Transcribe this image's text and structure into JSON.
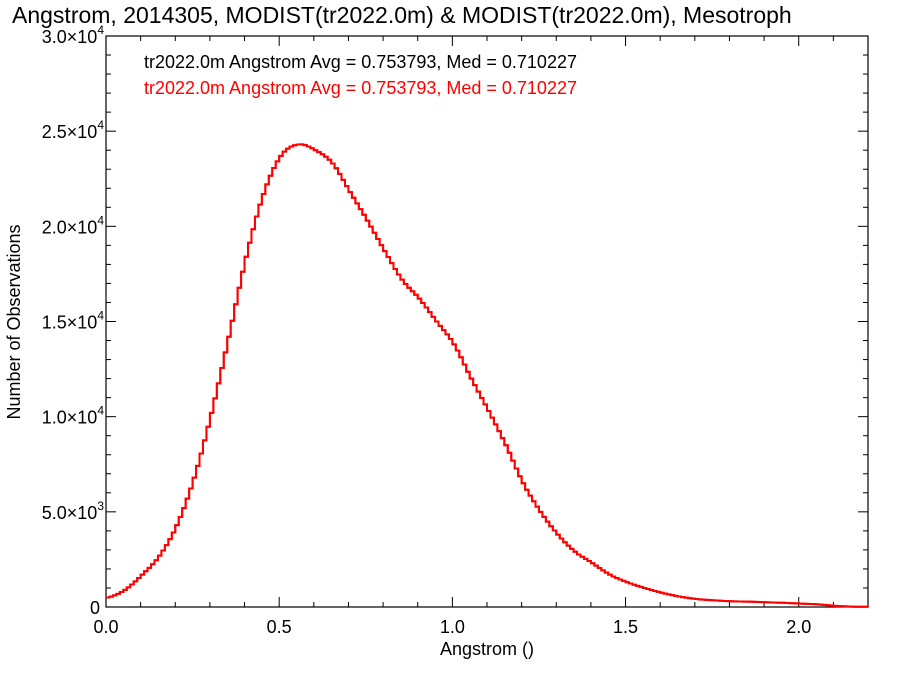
{
  "chart_data": {
    "type": "line",
    "style": "histogram-step",
    "title": "Angstrom, 2014305, MODIST(tr2022.0m) & MODIST(tr2022.0m), Mesotroph",
    "xlabel": "Angstrom ()",
    "ylabel": "Number of Observations",
    "xlim": [
      0.0,
      2.2
    ],
    "ylim": [
      0,
      30000
    ],
    "x_ticks": [
      {
        "value": 0.0,
        "label": "0.0"
      },
      {
        "value": 0.5,
        "label": "0.5"
      },
      {
        "value": 1.0,
        "label": "1.0"
      },
      {
        "value": 1.5,
        "label": "1.5"
      },
      {
        "value": 2.0,
        "label": "2.0"
      }
    ],
    "y_ticks": [
      {
        "value": 0,
        "mant": "0",
        "exp": ""
      },
      {
        "value": 5000,
        "mant": "5.0×10",
        "exp": "3"
      },
      {
        "value": 10000,
        "mant": "1.0×10",
        "exp": "4"
      },
      {
        "value": 15000,
        "mant": "1.5×10",
        "exp": "4"
      },
      {
        "value": 20000,
        "mant": "2.0×10",
        "exp": "4"
      },
      {
        "value": 25000,
        "mant": "2.5×10",
        "exp": "4"
      },
      {
        "value": 30000,
        "mant": "3.0×10",
        "exp": "4"
      }
    ],
    "annotations": [
      {
        "text": "tr2022.0m Angstrom Avg = 0.753793, Med = 0.710227",
        "color": "#000000"
      },
      {
        "text": "tr2022.0m Angstrom Avg = 0.753793, Med = 0.710227",
        "color": "#ff0000"
      }
    ],
    "series": [
      {
        "color": "#ff0000",
        "x": [
          0.0,
          0.05,
          0.1,
          0.15,
          0.2,
          0.25,
          0.3,
          0.35,
          0.4,
          0.45,
          0.5,
          0.55,
          0.6,
          0.65,
          0.7,
          0.75,
          0.8,
          0.85,
          0.9,
          0.95,
          1.0,
          1.05,
          1.1,
          1.15,
          1.2,
          1.25,
          1.3,
          1.35,
          1.4,
          1.45,
          1.5,
          1.55,
          1.6,
          1.65,
          1.7,
          1.75,
          1.8,
          1.85,
          1.9,
          1.95,
          2.0,
          2.05,
          2.1,
          2.15,
          2.2
        ],
        "values": [
          500,
          900,
          1700,
          2700,
          4300,
          6800,
          10200,
          14200,
          18400,
          21700,
          23700,
          24300,
          24000,
          23300,
          21800,
          20300,
          18700,
          17200,
          16200,
          15000,
          13800,
          12000,
          10300,
          8500,
          6500,
          5000,
          3800,
          2900,
          2300,
          1700,
          1300,
          1000,
          750,
          550,
          420,
          350,
          300,
          280,
          250,
          220,
          180,
          140,
          60,
          20,
          10
        ]
      },
      {
        "color": "#ff0000",
        "x": [
          0.0,
          0.05,
          0.1,
          0.15,
          0.2,
          0.25,
          0.3,
          0.35,
          0.4,
          0.45,
          0.5,
          0.55,
          0.6,
          0.65,
          0.7,
          0.75,
          0.8,
          0.85,
          0.9,
          0.95,
          1.0,
          1.05,
          1.1,
          1.15,
          1.2,
          1.25,
          1.3,
          1.35,
          1.4,
          1.45,
          1.5,
          1.55,
          1.6,
          1.65,
          1.7,
          1.75,
          1.8,
          1.85,
          1.9,
          1.95,
          2.0,
          2.05,
          2.1,
          2.15,
          2.2
        ],
        "values": [
          500,
          900,
          1700,
          2700,
          4300,
          6800,
          10200,
          14200,
          18400,
          21700,
          23700,
          24300,
          24000,
          23300,
          21800,
          20300,
          18700,
          17200,
          16200,
          15000,
          13800,
          12000,
          10300,
          8500,
          6500,
          5000,
          3800,
          2900,
          2300,
          1700,
          1300,
          1000,
          750,
          550,
          420,
          350,
          300,
          280,
          250,
          220,
          180,
          140,
          60,
          20,
          10
        ]
      }
    ],
    "grid": false,
    "legend": "top-left"
  }
}
